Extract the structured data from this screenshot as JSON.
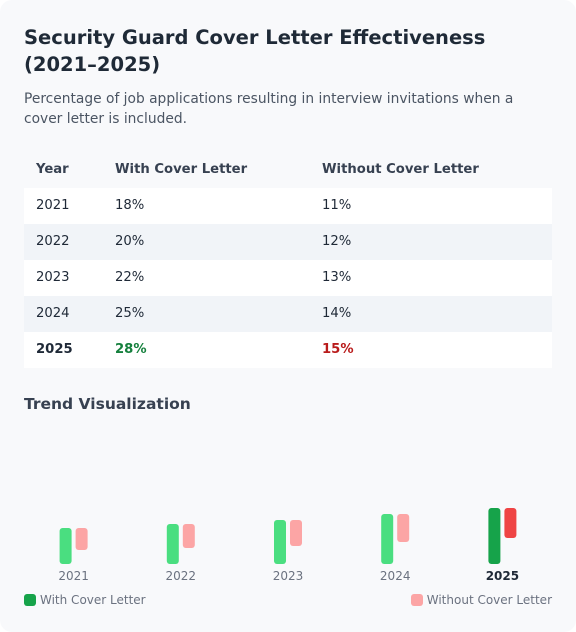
{
  "header": {
    "title": "Security Guard Cover Letter Effectiveness (2021–2025)",
    "subtitle": "Percentage of job applications resulting in interview invitations when a cover letter is included."
  },
  "table": {
    "columns": [
      "Year",
      "With Cover Letter",
      "Without Cover Letter"
    ],
    "rows": [
      [
        "2021",
        "18%",
        "11%"
      ],
      [
        "2022",
        "20%",
        "12%"
      ],
      [
        "2023",
        "22%",
        "13%"
      ],
      [
        "2024",
        "25%",
        "14%"
      ],
      [
        "2025",
        "28%",
        "15%"
      ]
    ]
  },
  "section": {
    "trend_title": "Trend Visualization"
  },
  "legend": {
    "with_label": "With Cover Letter",
    "without_label": "Without Cover Letter"
  },
  "colors": {
    "with": "#4ade80",
    "with_highlight": "#16a34a",
    "without": "#fca5a5",
    "without_highlight": "#ef4444"
  },
  "chart_data": {
    "type": "bar",
    "categories": [
      "2021",
      "2022",
      "2023",
      "2024",
      "2025"
    ],
    "series": [
      {
        "name": "With Cover Letter",
        "values": [
          18,
          20,
          22,
          25,
          28
        ]
      },
      {
        "name": "Without Cover Letter",
        "values": [
          11,
          12,
          13,
          14,
          15
        ]
      }
    ],
    "highlight_category": "2025",
    "legend": "bottom"
  }
}
